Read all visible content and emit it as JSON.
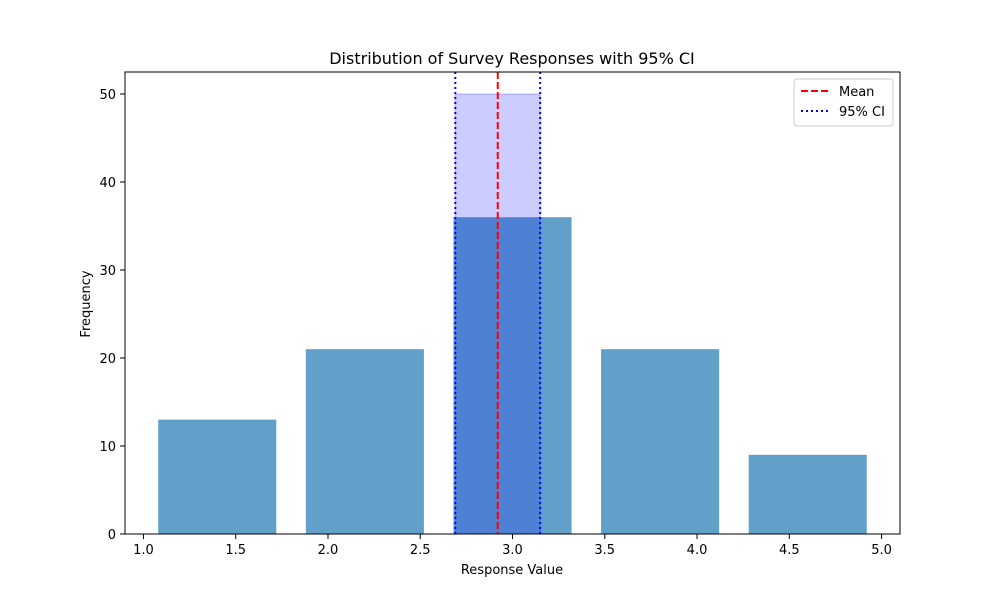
{
  "chart_data": {
    "type": "bar",
    "title": "Distribution of Survey Responses with 95% CI",
    "xlabel": "Response Value",
    "ylabel": "Frequency",
    "xlim": [
      0.9,
      5.1
    ],
    "ylim": [
      0,
      52.5
    ],
    "xticks": [
      1.0,
      1.5,
      2.0,
      2.5,
      3.0,
      3.5,
      4.0,
      4.5,
      5.0
    ],
    "xtick_labels": [
      "1.0",
      "1.5",
      "2.0",
      "2.5",
      "3.0",
      "3.5",
      "4.0",
      "4.5",
      "5.0"
    ],
    "yticks": [
      0,
      10,
      20,
      30,
      40,
      50
    ],
    "ytick_labels": [
      "0",
      "10",
      "20",
      "30",
      "40",
      "50"
    ],
    "grid": false,
    "series": [
      {
        "name": "",
        "color": "#1f77b4",
        "alpha": 0.7,
        "bars": [
          {
            "x0": 1.08,
            "x1": 1.72,
            "value": 13
          },
          {
            "x0": 1.88,
            "x1": 2.52,
            "value": 21
          },
          {
            "x0": 2.68,
            "x1": 3.32,
            "value": 36
          },
          {
            "x0": 3.48,
            "x1": 4.12,
            "value": 21
          },
          {
            "x0": 4.28,
            "x1": 4.92,
            "value": 9
          }
        ]
      }
    ],
    "ci_band": {
      "x0": 2.69,
      "x1": 3.15,
      "height": 50,
      "color": "#0000ff",
      "alpha": 0.2
    },
    "lines": [
      {
        "name": "Mean",
        "x": 2.92,
        "color": "#ff0000",
        "style": "dashed"
      },
      {
        "name": "95% CI",
        "x": 2.69,
        "color": "#0000ff",
        "style": "dotted"
      },
      {
        "name": "95% CI",
        "x": 3.15,
        "color": "#0000ff",
        "style": "dotted"
      }
    ],
    "legend": {
      "position": "top-right",
      "entries": [
        {
          "label": "Mean",
          "color": "#ff0000",
          "style": "dashed"
        },
        {
          "label": "95% CI",
          "color": "#0000ff",
          "style": "dotted"
        }
      ]
    }
  }
}
